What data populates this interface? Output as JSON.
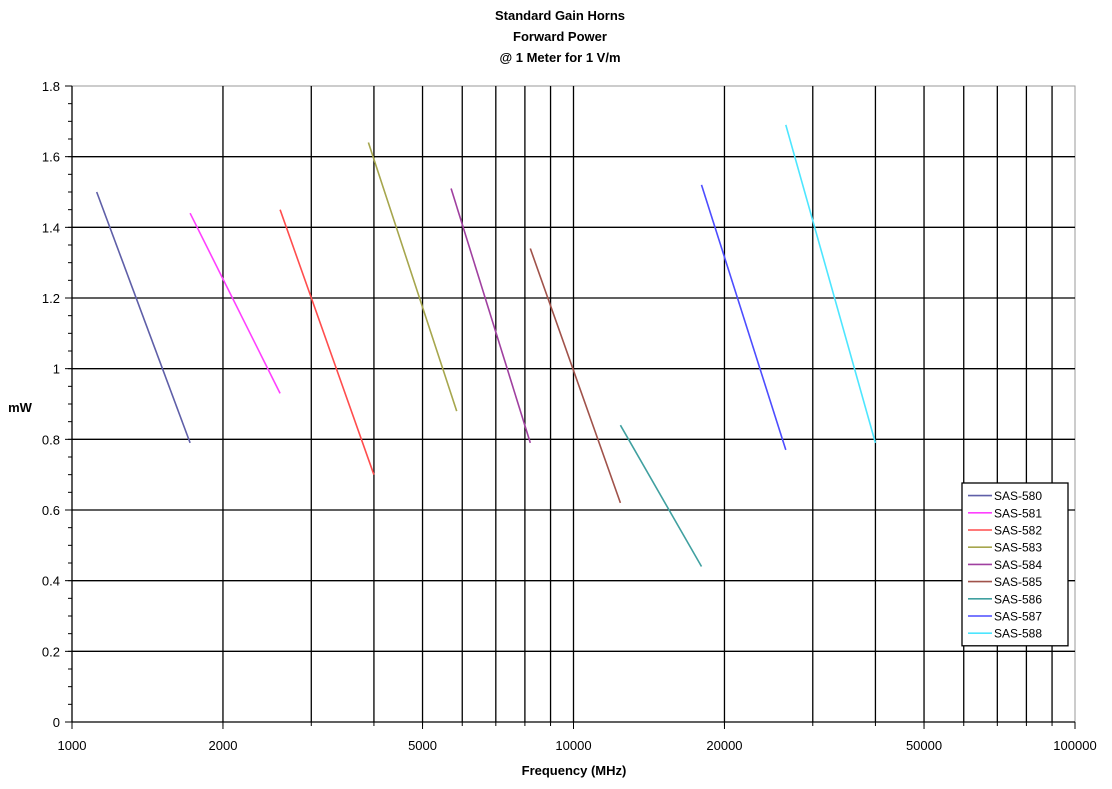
{
  "chart_data": {
    "type": "line",
    "title_lines": [
      "Standard Gain Horns",
      "Forward Power",
      "@ 1 Meter for 1 V/m"
    ],
    "xlabel": "Frequency (MHz)",
    "ylabel": "mW",
    "x_scale": "log",
    "xlim": [
      1000,
      100000
    ],
    "ylim": [
      0,
      1.8
    ],
    "x_ticks": [
      1000,
      2000,
      5000,
      10000,
      20000,
      50000,
      100000
    ],
    "x_tick_labels": [
      "1000",
      "2000",
      "5000",
      "10000",
      "20000",
      "50000",
      "100000"
    ],
    "x_gridlines": [
      2000,
      3000,
      4000,
      5000,
      6000,
      7000,
      8000,
      9000,
      10000,
      20000,
      30000,
      40000,
      50000,
      60000,
      70000,
      80000,
      90000
    ],
    "y_ticks": [
      0,
      0.2,
      0.4,
      0.6,
      0.8,
      1,
      1.2,
      1.4,
      1.6,
      1.8
    ],
    "y_tick_labels": [
      "0",
      "0.2",
      "0.4",
      "0.6",
      "0.8",
      "1",
      "1.2",
      "1.4",
      "1.6",
      "1.8"
    ],
    "grid": true,
    "legend_position": "right",
    "series": [
      {
        "name": "SAS-580",
        "color": "#5f5fa8",
        "x": [
          1120,
          1720
        ],
        "y": [
          1.5,
          0.79
        ]
      },
      {
        "name": "SAS-581",
        "color": "#ff40ff",
        "x": [
          1720,
          2600
        ],
        "y": [
          1.44,
          0.93
        ]
      },
      {
        "name": "SAS-582",
        "color": "#ff4d4d",
        "x": [
          2600,
          4000
        ],
        "y": [
          1.45,
          0.7
        ]
      },
      {
        "name": "SAS-583",
        "color": "#a6a64d",
        "x": [
          3900,
          5850
        ],
        "y": [
          1.64,
          0.88
        ]
      },
      {
        "name": "SAS-584",
        "color": "#a040a0",
        "x": [
          5700,
          8200
        ],
        "y": [
          1.51,
          0.79
        ]
      },
      {
        "name": "SAS-585",
        "color": "#a0524a",
        "x": [
          8200,
          12400
        ],
        "y": [
          1.34,
          0.62
        ]
      },
      {
        "name": "SAS-586",
        "color": "#40a0a0",
        "x": [
          12400,
          18000
        ],
        "y": [
          0.84,
          0.44
        ]
      },
      {
        "name": "SAS-587",
        "color": "#4d4dff",
        "x": [
          18000,
          26500
        ],
        "y": [
          1.52,
          0.77
        ]
      },
      {
        "name": "SAS-588",
        "color": "#4de6ff",
        "x": [
          26500,
          40000
        ],
        "y": [
          1.69,
          0.79
        ]
      }
    ]
  }
}
